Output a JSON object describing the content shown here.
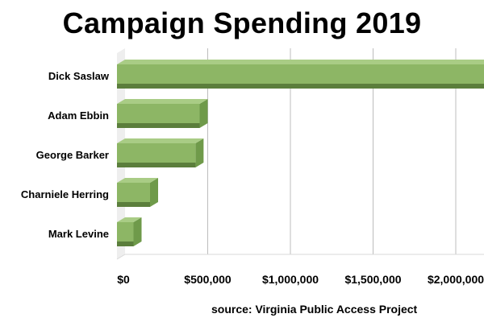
{
  "title": "Campaign Spending 2019",
  "source": "source: Virginia Public Access Project",
  "colors": {
    "bar_front": "#8db665",
    "bar_top": "#a9cc85",
    "bar_side": "#6f9a4a",
    "bar_bottom": "#5b7e3c",
    "grid": "#bdbdbd",
    "wall": "#eeeeee"
  },
  "chart_data": {
    "type": "bar",
    "orientation": "horizontal",
    "style": "3d",
    "title": "Campaign Spending 2019",
    "categories": [
      "Dick Saslaw",
      "Adam Ebbin",
      "George Barker",
      "Charniele Herring",
      "Mark Levine"
    ],
    "values": [
      2250000,
      500000,
      475000,
      200000,
      100000
    ],
    "xlim": [
      0,
      2000000
    ],
    "xticks": [
      0,
      500000,
      1000000,
      1500000,
      2000000
    ],
    "xtick_labels": [
      "$0",
      "$500,000",
      "$1,000,000",
      "$1,500,000",
      "$2,000,000"
    ],
    "grid": true,
    "legend": "none"
  }
}
